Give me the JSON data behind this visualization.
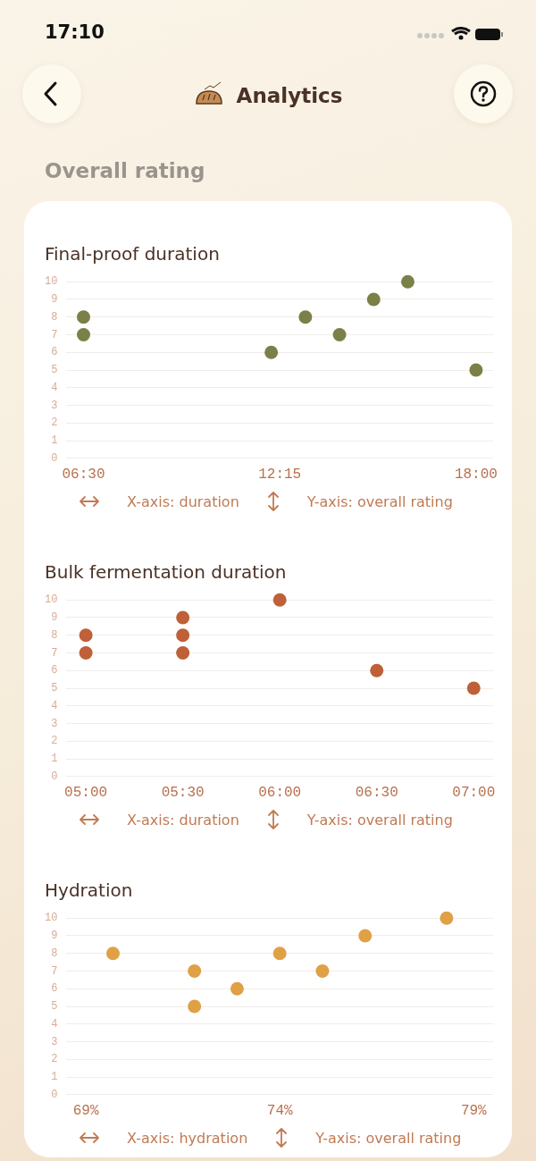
{
  "chart_data": [
    {
      "type": "other",
      "title": "Analytics",
      "subtitle": "Overall rating",
      "annotations": [
        "17:10"
      ]
    },
    {
      "type": "scatter",
      "title": "Final-proof duration",
      "color": "#7b8048",
      "marker": "circle",
      "grid": "y",
      "x": [
        6.5,
        6.5,
        12,
        13,
        14,
        15,
        16,
        18
      ],
      "values": [
        8,
        7,
        6,
        8,
        7,
        9,
        10,
        5
      ],
      "xlim": [
        6,
        18.5
      ],
      "xticks": [
        {
          "value": 6.5,
          "label": "06:30"
        },
        {
          "value": 12.25,
          "label": "12:15"
        },
        {
          "value": 18,
          "label": "18:00"
        }
      ],
      "ylim": [
        0,
        10
      ],
      "yticks": [
        0,
        1,
        2,
        3,
        4,
        5,
        6,
        7,
        8,
        9,
        10
      ],
      "annotations": [
        "X-axis: duration",
        "Y-axis: overall rating"
      ]
    },
    {
      "type": "scatter",
      "title": "Bulk fermentation duration",
      "color": "#bf6038",
      "marker": "circle",
      "grid": "y",
      "x": [
        5,
        5,
        5.5,
        5.5,
        5.5,
        6,
        6.5,
        7
      ],
      "values": [
        8,
        7,
        9,
        8,
        7,
        10,
        6,
        5
      ],
      "xlim": [
        4.9,
        7.1
      ],
      "xticks": [
        {
          "value": 5,
          "label": "05:00"
        },
        {
          "value": 5.5,
          "label": "05:30"
        },
        {
          "value": 6,
          "label": "06:00"
        },
        {
          "value": 6.5,
          "label": "06:30"
        },
        {
          "value": 7,
          "label": "07:00"
        }
      ],
      "ylim": [
        0,
        10
      ],
      "yticks": [
        0,
        1,
        2,
        3,
        4,
        5,
        6,
        7,
        8,
        9,
        10
      ],
      "annotations": [
        "X-axis: duration",
        "Y-axis: overall rating"
      ]
    },
    {
      "type": "scatter",
      "title": "Hydration",
      "color": "#dfa046",
      "marker": "circle",
      "grid": "y",
      "x": [
        69.7,
        71.8,
        71.8,
        72.9,
        74,
        75.1,
        76.2,
        78.3
      ],
      "values": [
        8,
        7,
        5,
        6,
        8,
        7,
        9,
        10
      ],
      "xlim": [
        68.5,
        79.5
      ],
      "xticks": [
        {
          "value": 69,
          "label": "69%"
        },
        {
          "value": 74,
          "label": "74%"
        },
        {
          "value": 79,
          "label": "79%"
        }
      ],
      "ylim": [
        0,
        10
      ],
      "yticks": [
        0,
        1,
        2,
        3,
        4,
        5,
        6,
        7,
        8,
        9,
        10
      ],
      "annotations": [
        "X-axis: hydration",
        "Y-axis: overall rating"
      ]
    }
  ]
}
